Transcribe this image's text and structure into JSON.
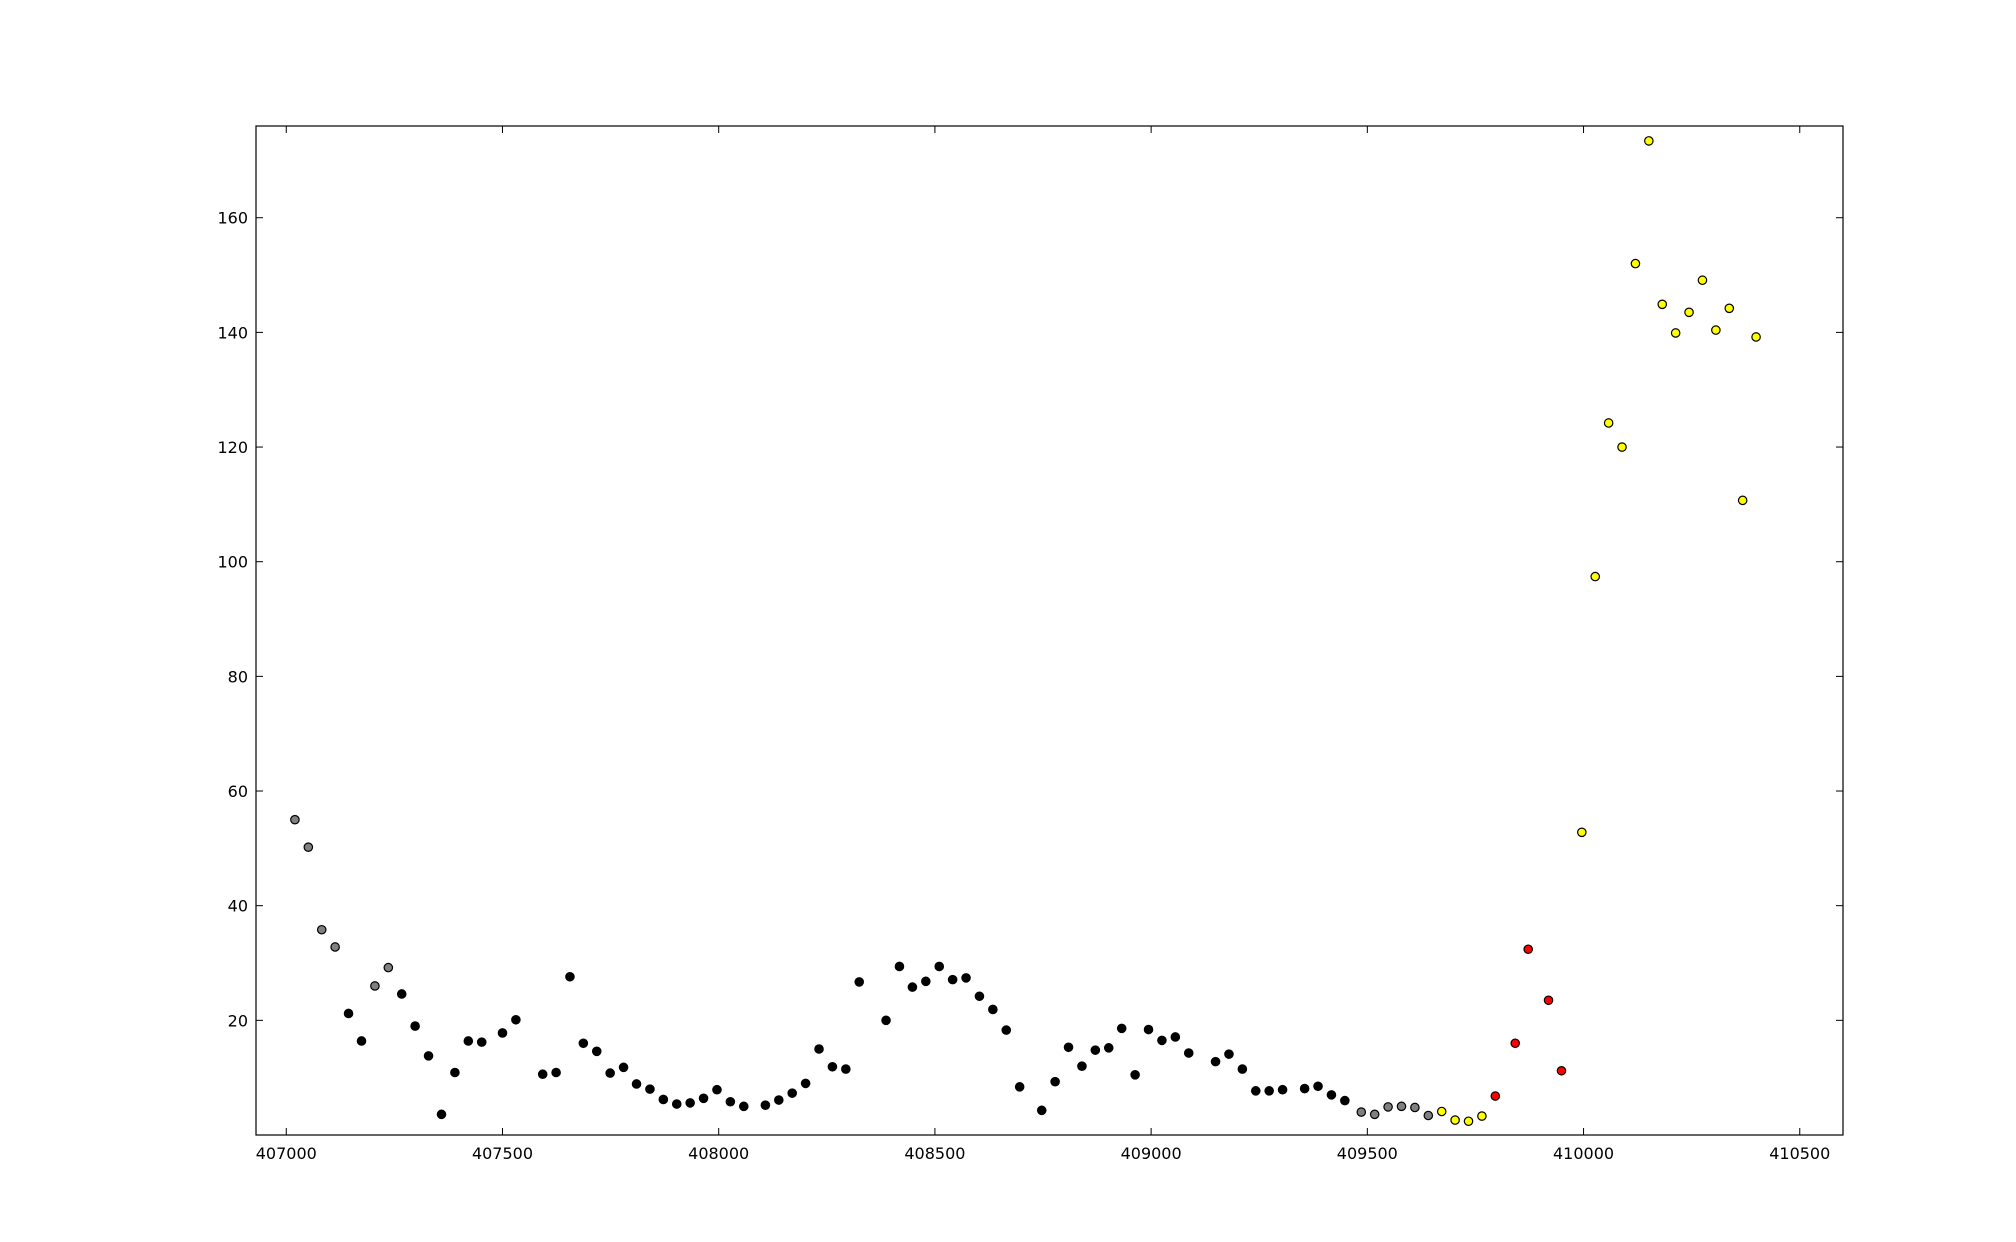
{
  "chart_data": {
    "type": "scatter",
    "title": "",
    "xlabel": "",
    "ylabel": "",
    "xlim": [
      406930,
      410600
    ],
    "ylim": [
      0,
      176
    ],
    "xticks": [
      407000,
      407500,
      408000,
      408500,
      409000,
      409500,
      410000,
      410500
    ],
    "yticks": [
      20,
      40,
      60,
      80,
      100,
      120,
      140,
      160
    ],
    "grid": false,
    "legend": "none",
    "series": [
      {
        "color": "#808080",
        "points": [
          [
            407020,
            55
          ],
          [
            407051,
            50.2
          ],
          [
            407082,
            35.8
          ],
          [
            407113,
            32.8
          ],
          [
            407205,
            26
          ],
          [
            407236,
            29.2
          ],
          [
            409486,
            4
          ],
          [
            409517,
            3.6
          ],
          [
            409548,
            4.9
          ],
          [
            409579,
            5
          ],
          [
            409610,
            4.8
          ],
          [
            409641,
            3.4
          ]
        ]
      },
      {
        "color": "#000000",
        "points": [
          [
            407144,
            21.2
          ],
          [
            407174,
            16.4
          ],
          [
            407267,
            24.6
          ],
          [
            407298,
            19
          ],
          [
            407329,
            13.8
          ],
          [
            407359,
            3.6
          ],
          [
            407390,
            10.9
          ],
          [
            407421,
            16.4
          ],
          [
            407452,
            16.2
          ],
          [
            407500,
            17.8
          ],
          [
            407531,
            20.1
          ],
          [
            407593,
            10.6
          ],
          [
            407624,
            10.9
          ],
          [
            407656,
            27.6
          ],
          [
            407687,
            16
          ],
          [
            407718,
            14.6
          ],
          [
            407749,
            10.8
          ],
          [
            407780,
            11.8
          ],
          [
            407810,
            8.9
          ],
          [
            407841,
            8
          ],
          [
            407872,
            6.2
          ],
          [
            407903,
            5.4
          ],
          [
            407934,
            5.6
          ],
          [
            407965,
            6.4
          ],
          [
            407996,
            7.9
          ],
          [
            408027,
            5.8
          ],
          [
            408058,
            5
          ],
          [
            408108,
            5.2
          ],
          [
            408139,
            6.1
          ],
          [
            408170,
            7.3
          ],
          [
            408201,
            9
          ],
          [
            408232,
            15
          ],
          [
            408263,
            11.9
          ],
          [
            408294,
            11.5
          ],
          [
            408325,
            26.7
          ],
          [
            408387,
            20
          ],
          [
            408418,
            29.4
          ],
          [
            408448,
            25.8
          ],
          [
            408479,
            26.8
          ],
          [
            408510,
            29.4
          ],
          [
            408541,
            27.1
          ],
          [
            408572,
            27.4
          ],
          [
            408603,
            24.2
          ],
          [
            408634,
            21.9
          ],
          [
            408665,
            18.3
          ],
          [
            408696,
            8.4
          ],
          [
            408747,
            4.3
          ],
          [
            408778,
            9.3
          ],
          [
            408809,
            15.3
          ],
          [
            408840,
            12
          ],
          [
            408871,
            14.8
          ],
          [
            408902,
            15.2
          ],
          [
            408932,
            18.6
          ],
          [
            408963,
            10.5
          ],
          [
            408994,
            18.4
          ],
          [
            409025,
            16.5
          ],
          [
            409056,
            17.1
          ],
          [
            409087,
            14.3
          ],
          [
            409149,
            12.8
          ],
          [
            409180,
            14.1
          ],
          [
            409211,
            11.5
          ],
          [
            409242,
            7.7
          ],
          [
            409273,
            7.7
          ],
          [
            409304,
            7.9
          ],
          [
            409355,
            8.1
          ],
          [
            409386,
            8.5
          ],
          [
            409417,
            7
          ],
          [
            409448,
            6
          ]
        ]
      },
      {
        "color": "#ffff00",
        "points": [
          [
            409672,
            4.1
          ],
          [
            409703,
            2.6
          ],
          [
            409734,
            2.4
          ],
          [
            409765,
            3.3
          ],
          [
            409996,
            52.8
          ],
          [
            410027,
            97.4
          ],
          [
            410058,
            124.2
          ],
          [
            410089,
            120
          ],
          [
            410120,
            152
          ],
          [
            410151,
            173.4
          ],
          [
            410182,
            144.9
          ],
          [
            410213,
            139.9
          ],
          [
            410244,
            143.5
          ],
          [
            410275,
            149.1
          ],
          [
            410306,
            140.4
          ],
          [
            410337,
            144.2
          ],
          [
            410368,
            110.7
          ],
          [
            410399,
            139.2
          ]
        ]
      },
      {
        "color": "#ff0000",
        "points": [
          [
            409796,
            6.8
          ],
          [
            409842,
            16
          ],
          [
            409872,
            32.4
          ],
          [
            409919,
            23.5
          ],
          [
            409949,
            11.2
          ]
        ]
      }
    ]
  }
}
